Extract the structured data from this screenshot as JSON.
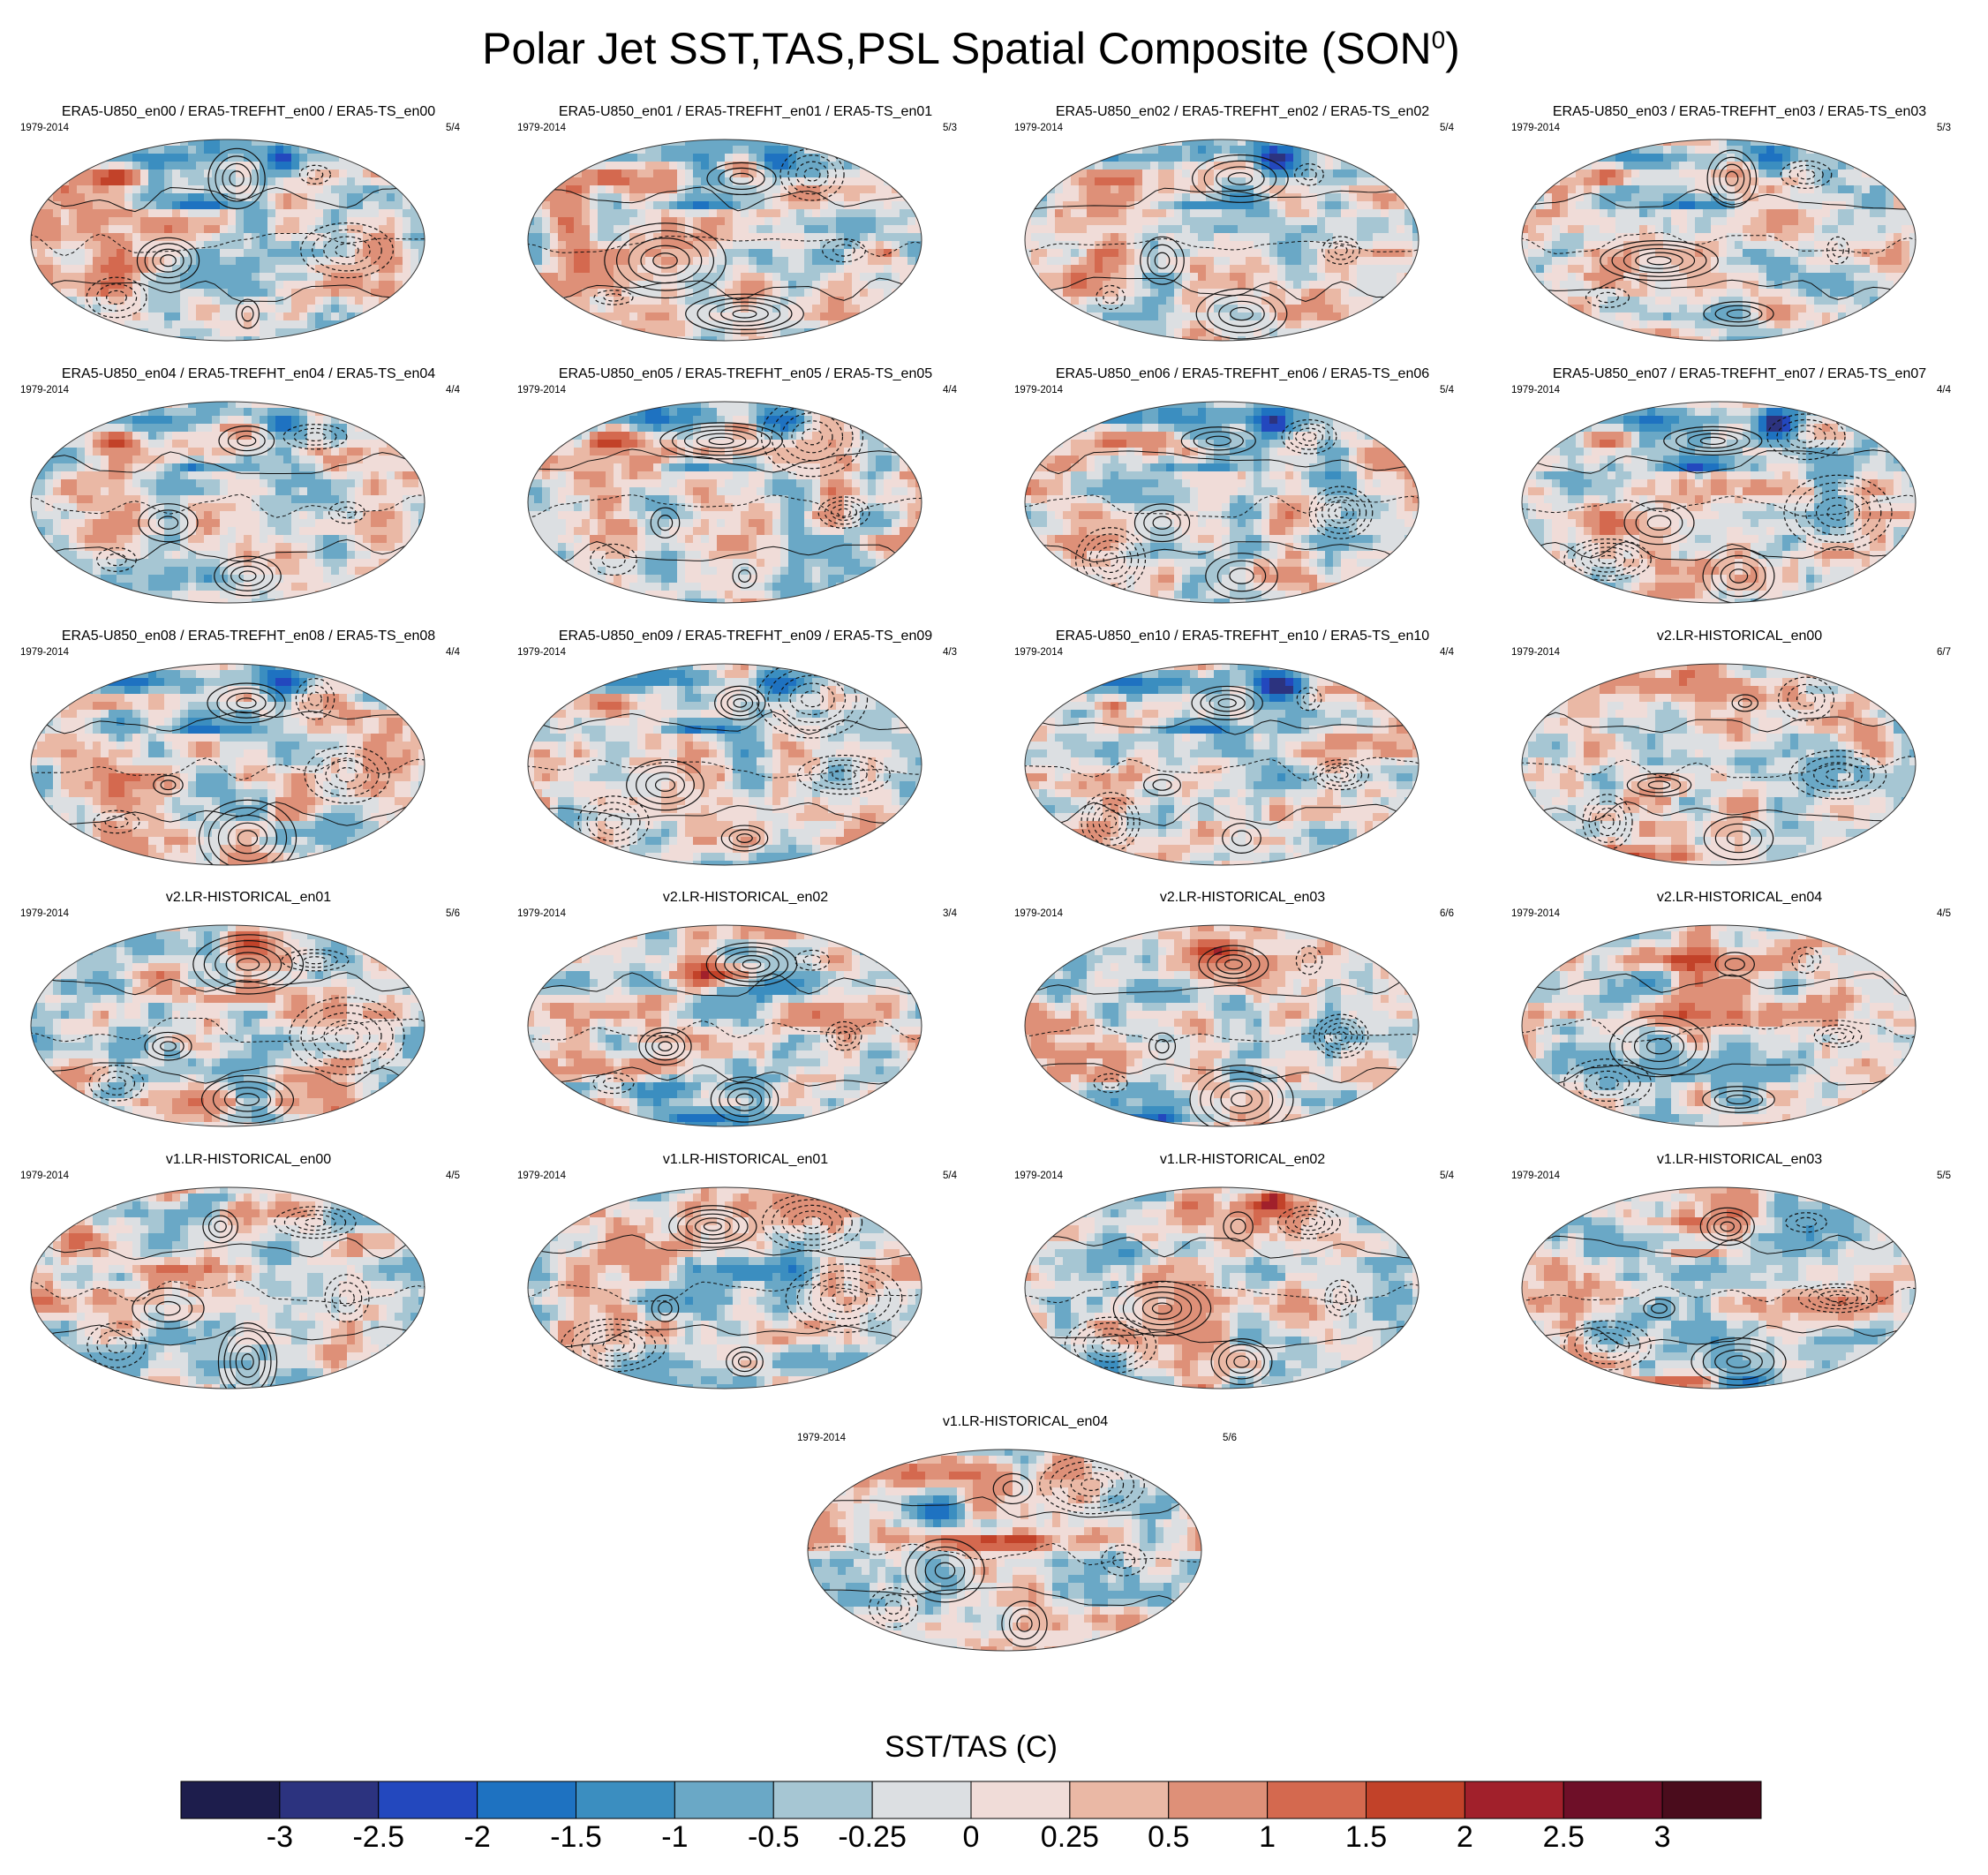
{
  "title": "Polar Jet SST,TAS,PSL Spatial Composite (SON",
  "title_superscript": "0",
  "title_close": ")",
  "colorbar": {
    "title": "SST/TAS (C)",
    "colors": [
      "#1d1d4c",
      "#2c337f",
      "#2348be",
      "#1e72c1",
      "#3b8ec0",
      "#6aa8c6",
      "#a6c6d3",
      "#dcdfe2",
      "#f0dcd8",
      "#eab8a5",
      "#de9078",
      "#d4694f",
      "#c24229",
      "#a1202b",
      "#6e0f28",
      "#4a0c1c"
    ],
    "labels": [
      "-3",
      "-2.5",
      "-2",
      "-1.5",
      "-1",
      "-0.5",
      "-0.25",
      "0",
      "0.25",
      "0.5",
      "1",
      "1.5",
      "2",
      "2.5",
      "3"
    ]
  },
  "panels": [
    {
      "title": "ERA5-U850_en00 / ERA5-TREFHT_en00 / ERA5-TS_en00",
      "years": "1979-2014",
      "ratio": "5/4",
      "pattern": "era"
    },
    {
      "title": "ERA5-U850_en01 / ERA5-TREFHT_en01 / ERA5-TS_en01",
      "years": "1979-2014",
      "ratio": "5/3",
      "pattern": "era"
    },
    {
      "title": "ERA5-U850_en02 / ERA5-TREFHT_en02 / ERA5-TS_en02",
      "years": "1979-2014",
      "ratio": "5/4",
      "pattern": "era"
    },
    {
      "title": "ERA5-U850_en03 / ERA5-TREFHT_en03 / ERA5-TS_en03",
      "years": "1979-2014",
      "ratio": "5/3",
      "pattern": "era"
    },
    {
      "title": "ERA5-U850_en04 / ERA5-TREFHT_en04 / ERA5-TS_en04",
      "years": "1979-2014",
      "ratio": "4/4",
      "pattern": "era"
    },
    {
      "title": "ERA5-U850_en05 / ERA5-TREFHT_en05 / ERA5-TS_en05",
      "years": "1979-2014",
      "ratio": "4/4",
      "pattern": "era"
    },
    {
      "title": "ERA5-U850_en06 / ERA5-TREFHT_en06 / ERA5-TS_en06",
      "years": "1979-2014",
      "ratio": "5/4",
      "pattern": "era"
    },
    {
      "title": "ERA5-U850_en07 / ERA5-TREFHT_en07 / ERA5-TS_en07",
      "years": "1979-2014",
      "ratio": "4/4",
      "pattern": "era"
    },
    {
      "title": "ERA5-U850_en08 / ERA5-TREFHT_en08 / ERA5-TS_en08",
      "years": "1979-2014",
      "ratio": "4/4",
      "pattern": "era"
    },
    {
      "title": "ERA5-U850_en09 / ERA5-TREFHT_en09 / ERA5-TS_en09",
      "years": "1979-2014",
      "ratio": "4/3",
      "pattern": "era"
    },
    {
      "title": "ERA5-U850_en10 / ERA5-TREFHT_en10 / ERA5-TS_en10",
      "years": "1979-2014",
      "ratio": "4/4",
      "pattern": "era"
    },
    {
      "title": "v2.LR-HISTORICAL_en00",
      "years": "1979-2014",
      "ratio": "6/7",
      "pattern": "v2a"
    },
    {
      "title": "v2.LR-HISTORICAL_en01",
      "years": "1979-2014",
      "ratio": "5/6",
      "pattern": "v2b"
    },
    {
      "title": "v2.LR-HISTORICAL_en02",
      "years": "1979-2014",
      "ratio": "3/4",
      "pattern": "v2c"
    },
    {
      "title": "v2.LR-HISTORICAL_en03",
      "years": "1979-2014",
      "ratio": "6/6",
      "pattern": "v2d"
    },
    {
      "title": "v2.LR-HISTORICAL_en04",
      "years": "1979-2014",
      "ratio": "4/5",
      "pattern": "v2e"
    },
    {
      "title": "v1.LR-HISTORICAL_en00",
      "years": "1979-2014",
      "ratio": "4/5",
      "pattern": "v1a"
    },
    {
      "title": "v1.LR-HISTORICAL_en01",
      "years": "1979-2014",
      "ratio": "5/4",
      "pattern": "v1b"
    },
    {
      "title": "v1.LR-HISTORICAL_en02",
      "years": "1979-2014",
      "ratio": "5/4",
      "pattern": "v1c"
    },
    {
      "title": "v1.LR-HISTORICAL_en03",
      "years": "1979-2014",
      "ratio": "5/5",
      "pattern": "v1d"
    },
    {
      "title": "v1.LR-HISTORICAL_en04",
      "years": "1979-2014",
      "ratio": "5/6",
      "pattern": "v1e"
    }
  ],
  "chart_data": {
    "type": "heatmap",
    "title": "Polar Jet SST,TAS,PSL Spatial Composite (SON0)",
    "colorbar_label": "SST/TAS (C)",
    "colorbar_levels": [
      -3,
      -2.5,
      -2,
      -1.5,
      -1,
      -0.5,
      -0.25,
      0,
      0.25,
      0.5,
      1,
      1.5,
      2,
      2.5,
      3
    ],
    "period": "1979-2014",
    "projection": "Hammer/Aitoff global",
    "contours": "PSL (solid positive, dashed negative)",
    "panel_count": 21
  }
}
